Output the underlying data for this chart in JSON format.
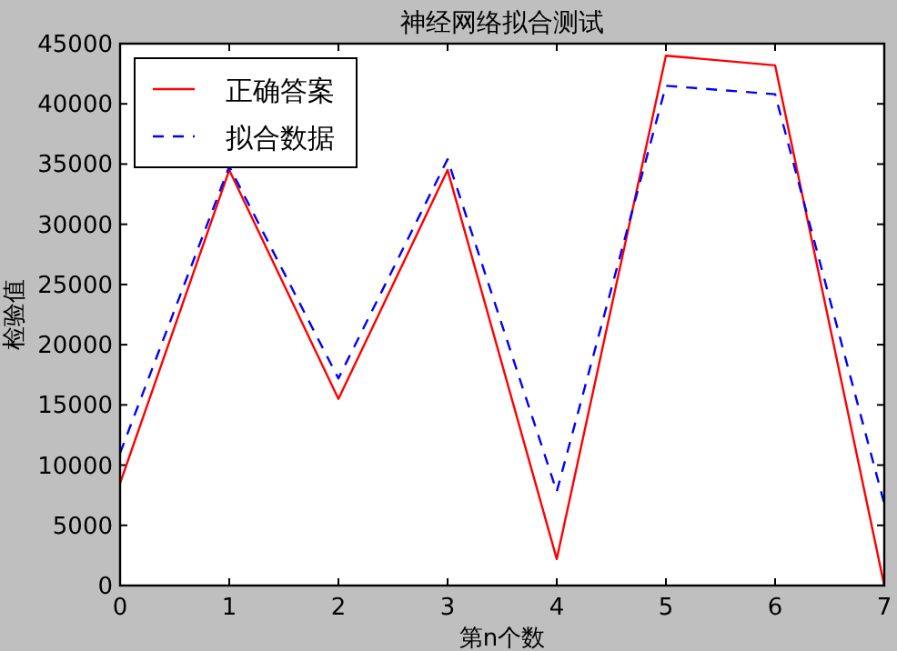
{
  "chart_data": {
    "type": "line",
    "title": "神经网络拟合测试",
    "xlabel": "第n个数",
    "ylabel": "检验值",
    "x": [
      0,
      1,
      2,
      3,
      4,
      5,
      6,
      7
    ],
    "series": [
      {
        "name": "正确答案",
        "color": "#ff0000",
        "line_style": "solid",
        "values": [
          8500,
          34500,
          15500,
          34500,
          2200,
          44000,
          43200,
          0
        ]
      },
      {
        "name": "拟合数据",
        "color": "#0000ff",
        "line_style": "dashed",
        "values": [
          11000,
          34800,
          17200,
          35400,
          7800,
          41500,
          40800,
          6800
        ]
      }
    ],
    "xlim": [
      0,
      7
    ],
    "ylim": [
      0,
      45000
    ],
    "xticks": [
      0,
      1,
      2,
      3,
      4,
      5,
      6,
      7
    ],
    "yticks": [
      0,
      5000,
      10000,
      15000,
      20000,
      25000,
      30000,
      35000,
      40000,
      45000
    ],
    "grid": false,
    "legend": "top left"
  }
}
